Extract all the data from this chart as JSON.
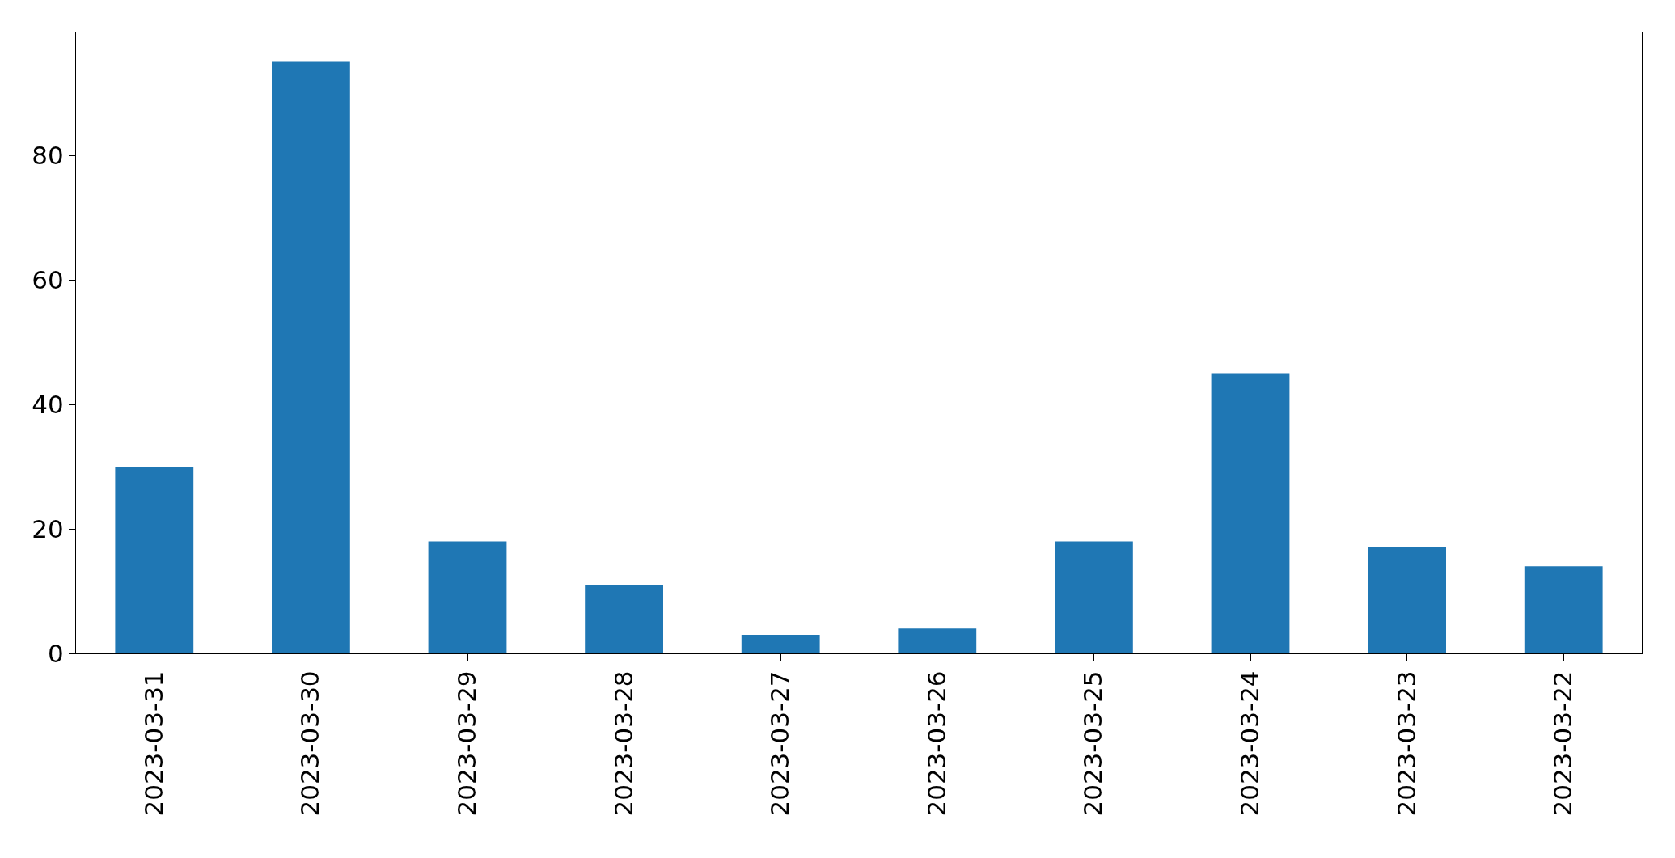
{
  "chart_data": {
    "type": "bar",
    "categories": [
      "2023-03-31",
      "2023-03-30",
      "2023-03-29",
      "2023-03-28",
      "2023-03-27",
      "2023-03-26",
      "2023-03-25",
      "2023-03-24",
      "2023-03-23",
      "2023-03-22"
    ],
    "values": [
      30,
      95,
      18,
      11,
      3,
      4,
      18,
      45,
      17,
      14
    ],
    "color": "#1f77b4",
    "ylim": [
      0,
      99.75
    ],
    "yticks": [
      0,
      20,
      40,
      60,
      80
    ]
  }
}
